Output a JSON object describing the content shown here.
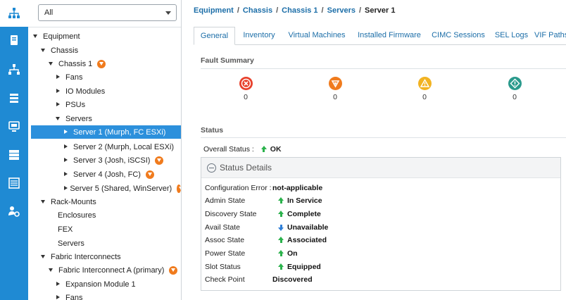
{
  "rail": {
    "items": [
      {
        "icon": "equipment-icon"
      },
      {
        "icon": "servers-icon"
      },
      {
        "icon": "lan-icon"
      },
      {
        "icon": "san-icon"
      },
      {
        "icon": "vm-icon"
      },
      {
        "icon": "storage-icon"
      },
      {
        "icon": "chassis-icon"
      },
      {
        "icon": "admin-icon"
      }
    ]
  },
  "tree": {
    "filter_value": "All",
    "nodes": [
      {
        "label": "Equipment"
      },
      {
        "label": "Chassis"
      },
      {
        "label": "Chassis 1"
      },
      {
        "label": "Fans"
      },
      {
        "label": "IO Modules"
      },
      {
        "label": "PSUs"
      },
      {
        "label": "Servers"
      },
      {
        "label": "Server 1 (Murph, FC ESXi)"
      },
      {
        "label": "Server 2 (Murph, Local ESXi)"
      },
      {
        "label": "Server 3 (Josh, iSCSI)"
      },
      {
        "label": "Server 4 (Josh, FC)"
      },
      {
        "label": "Server 5 (Shared, WinServer)"
      },
      {
        "label": "Rack-Mounts"
      },
      {
        "label": "Enclosures"
      },
      {
        "label": "FEX"
      },
      {
        "label": "Servers"
      },
      {
        "label": "Fabric Interconnects"
      },
      {
        "label": "Fabric Interconnect A (primary)"
      },
      {
        "label": "Expansion Module 1"
      },
      {
        "label": "Fans"
      }
    ]
  },
  "breadcrumb": [
    "Equipment",
    "Chassis",
    "Chassis 1",
    "Servers",
    "Server 1"
  ],
  "tabs": [
    "General",
    "Inventory",
    "Virtual Machines",
    "Installed Firmware",
    "CIMC Sessions",
    "SEL Logs",
    "VIF Paths"
  ],
  "fault_summary": {
    "title": "Fault Summary",
    "items": [
      {
        "icon": "critical-icon",
        "count": "0",
        "color": "#e8412c"
      },
      {
        "icon": "major-icon",
        "count": "0",
        "color": "#f07b1d"
      },
      {
        "icon": "minor-icon",
        "count": "0",
        "color": "#f2b322"
      },
      {
        "icon": "warning-icon",
        "count": "0",
        "color": "#2a9a8c"
      }
    ]
  },
  "status": {
    "title": "Status",
    "overall_label": "Overall Status :",
    "overall_value": "OK",
    "details_title": "Status Details",
    "rows": [
      {
        "label": "Configuration Error :",
        "value": "not-applicable",
        "arrow": "none"
      },
      {
        "label": "Admin State",
        "value": "In Service",
        "arrow": "up"
      },
      {
        "label": "Discovery State",
        "value": "Complete",
        "arrow": "up"
      },
      {
        "label": "Avail State",
        "value": "Unavailable",
        "arrow": "down"
      },
      {
        "label": "Assoc State",
        "value": "Associated",
        "arrow": "up"
      },
      {
        "label": "Power State",
        "value": "On",
        "arrow": "up"
      },
      {
        "label": "Slot Status",
        "value": "Equipped",
        "arrow": "up"
      },
      {
        "label": "Check Point",
        "value": "Discovered",
        "arrow": "none"
      }
    ]
  },
  "colors": {
    "rail": "#1f8ad3",
    "selected": "#2c90dc",
    "link": "#1c6ea8",
    "ok_arrow": "#2bb24c",
    "down_arrow": "#2f7fd8"
  }
}
